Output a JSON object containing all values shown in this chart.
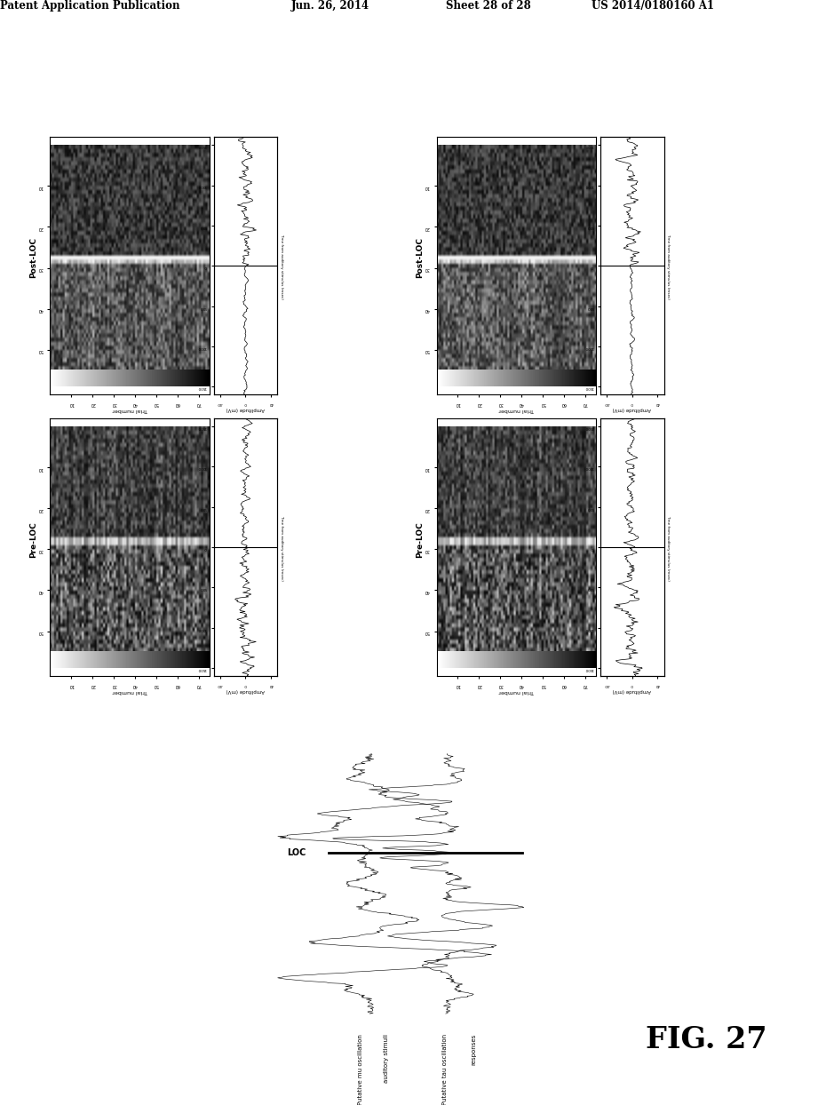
{
  "header_text": "Patent Application Publication",
  "header_date": "Jun. 26, 2014",
  "header_sheet": "Sheet 28 of 28",
  "header_patent": "US 2014/0180160 A1",
  "fig_label": "FIG. 27",
  "panel_labels_top": [
    "Post-LOC",
    "Post-LOC"
  ],
  "panel_labels_bottom": [
    "Pre-LOC",
    "Pre-LOC"
  ],
  "bottom_labels": {
    "mu": "Putative mu oscillation",
    "stim": "auditory stimuli",
    "tau": "Putative tau oscillation",
    "resp": "responses",
    "loc": "LOC"
  },
  "bg_color": "#ffffff"
}
